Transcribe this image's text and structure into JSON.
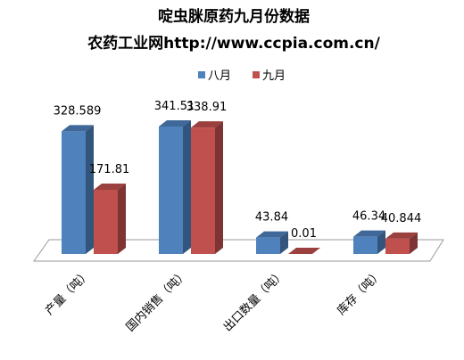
{
  "chart_data": {
    "type": "bar3d",
    "title": "啶虫脒原药九月份数据",
    "subtitle": "农药工业网http://www.ccpia.com.cn/",
    "categories": [
      "产量（吨）",
      "国内销售（吨）",
      "出口数量（吨）",
      "库存（吨）"
    ],
    "series": [
      {
        "name": "八月",
        "color": "#4f81bd",
        "values": [
          328.589,
          341.51,
          43.84,
          46.34
        ]
      },
      {
        "name": "九月",
        "color": "#c0504d",
        "values": [
          171.81,
          338.91,
          0.01,
          40.844
        ]
      }
    ]
  }
}
